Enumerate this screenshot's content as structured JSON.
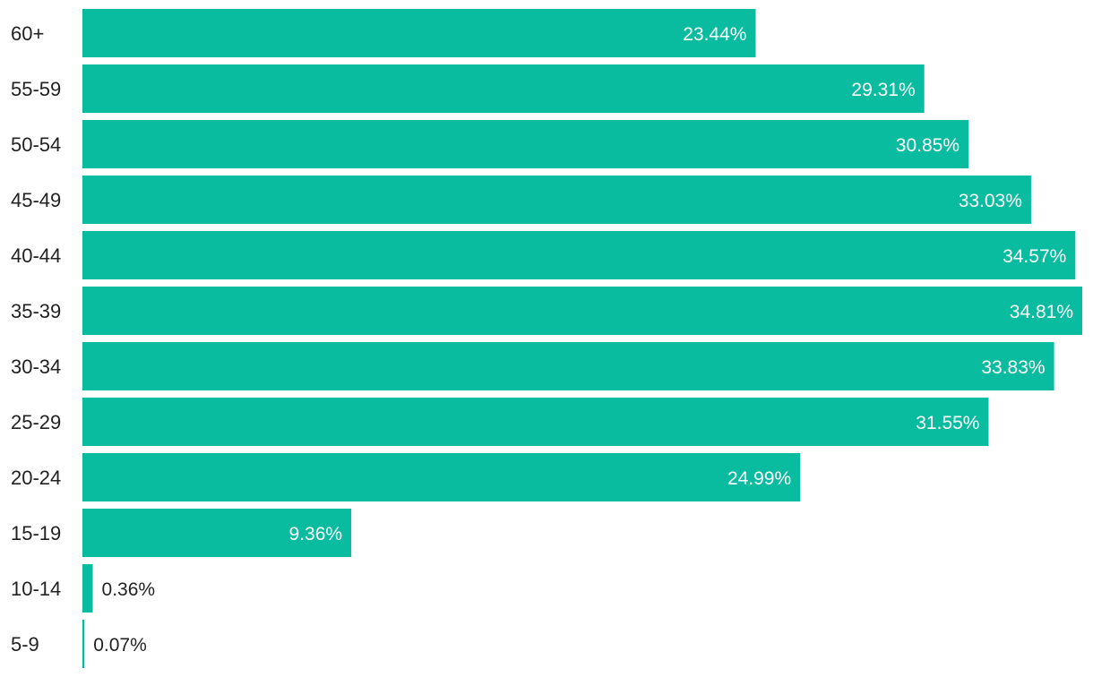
{
  "chart_data": {
    "type": "bar",
    "orientation": "horizontal",
    "title": "",
    "xlabel": "",
    "ylabel": "",
    "categories": [
      "60+",
      "55-59",
      "50-54",
      "45-49",
      "40-44",
      "35-39",
      "30-34",
      "25-29",
      "20-24",
      "15-19",
      "10-14",
      "5-9"
    ],
    "values": [
      23.44,
      29.31,
      30.85,
      33.03,
      34.57,
      34.81,
      33.83,
      31.55,
      24.99,
      9.36,
      0.36,
      0.07
    ],
    "value_labels": [
      "23.44%",
      "29.31%",
      "30.85%",
      "33.03%",
      "34.57%",
      "34.81%",
      "33.83%",
      "31.55%",
      "24.99%",
      "9.36%",
      "0.36%",
      "0.07%"
    ],
    "xlim": [
      0,
      34.81
    ],
    "grid": false,
    "legend": "none",
    "bar_color": "#0abc9f"
  }
}
